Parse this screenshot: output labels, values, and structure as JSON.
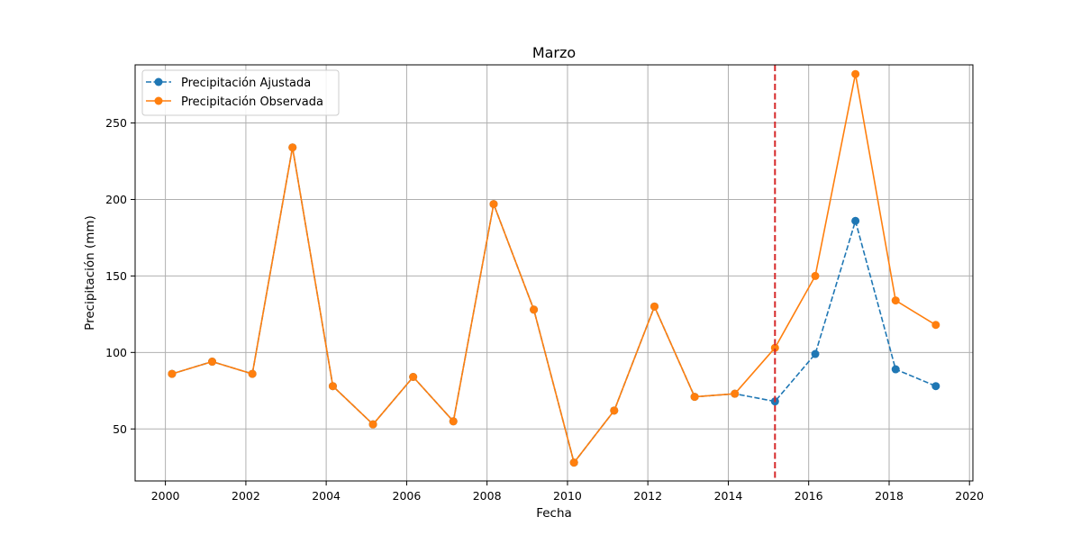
{
  "chart_data": {
    "type": "line",
    "title": "Marzo",
    "xlabel": "Fecha",
    "ylabel": "Precipitación (mm)",
    "x_ticks": [
      "2000",
      "2002",
      "2004",
      "2006",
      "2008",
      "2010",
      "2012",
      "2014",
      "2016",
      "2018",
      "2020"
    ],
    "y_ticks": [
      "50",
      "100",
      "150",
      "200",
      "250"
    ],
    "xlim": [
      "1999-04-01",
      "2020-02-01"
    ],
    "ylim": [
      16,
      288
    ],
    "grid": true,
    "legend_position": "top-left",
    "x": [
      "2000-03-01",
      "2001-03-01",
      "2002-03-01",
      "2003-03-01",
      "2004-03-01",
      "2005-03-01",
      "2006-03-01",
      "2007-03-01",
      "2008-03-01",
      "2009-03-01",
      "2010-03-01",
      "2011-03-01",
      "2012-03-01",
      "2013-03-01",
      "2014-03-01",
      "2015-03-01",
      "2016-03-01",
      "2017-03-01",
      "2018-03-01",
      "2019-03-01"
    ],
    "series": [
      {
        "name": "Precipitación Ajustada",
        "color": "#1f77b4",
        "line_style": "dashed",
        "values": [
          86,
          94,
          86,
          234,
          78,
          53,
          84,
          55,
          197,
          128,
          28,
          62,
          130,
          71,
          73,
          68,
          99,
          186,
          89,
          78
        ]
      },
      {
        "name": "Precipitación Observada",
        "color": "#ff7f0e",
        "line_style": "solid",
        "values": [
          86,
          94,
          86,
          234,
          78,
          53,
          84,
          55,
          197,
          128,
          28,
          62,
          130,
          71,
          73,
          103,
          150,
          282,
          134,
          118
        ]
      }
    ],
    "reference_line": {
      "orientation": "vertical",
      "x": "2015-03-01",
      "color": "#d62728",
      "line_style": "dashed"
    }
  }
}
